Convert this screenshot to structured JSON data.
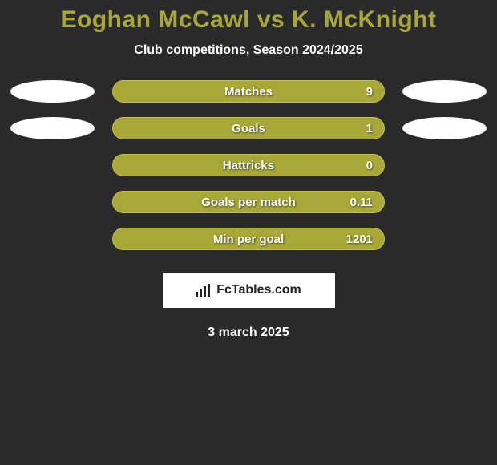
{
  "title_color": "#a8a838",
  "subtitle_color": "#ffffff",
  "background_color": "#2a2a2a",
  "bar_color": "#a8a838",
  "bar_border_color": "#c0c050",
  "oval_left_color": "#ffffff",
  "oval_right_color": "#ffffff",
  "text_color": "#ffffff",
  "title": "Eoghan McCawl vs K. McKnight",
  "subtitle": "Club competitions, Season 2024/2025",
  "date": "3 march 2025",
  "logo_text": "FcTables.com",
  "stats": [
    {
      "label": "Matches",
      "value": "9",
      "show_ovals": true
    },
    {
      "label": "Goals",
      "value": "1",
      "show_ovals": true
    },
    {
      "label": "Hattricks",
      "value": "0",
      "show_ovals": false
    },
    {
      "label": "Goals per match",
      "value": "0.11",
      "show_ovals": false
    },
    {
      "label": "Min per goal",
      "value": "1201",
      "show_ovals": false
    }
  ]
}
